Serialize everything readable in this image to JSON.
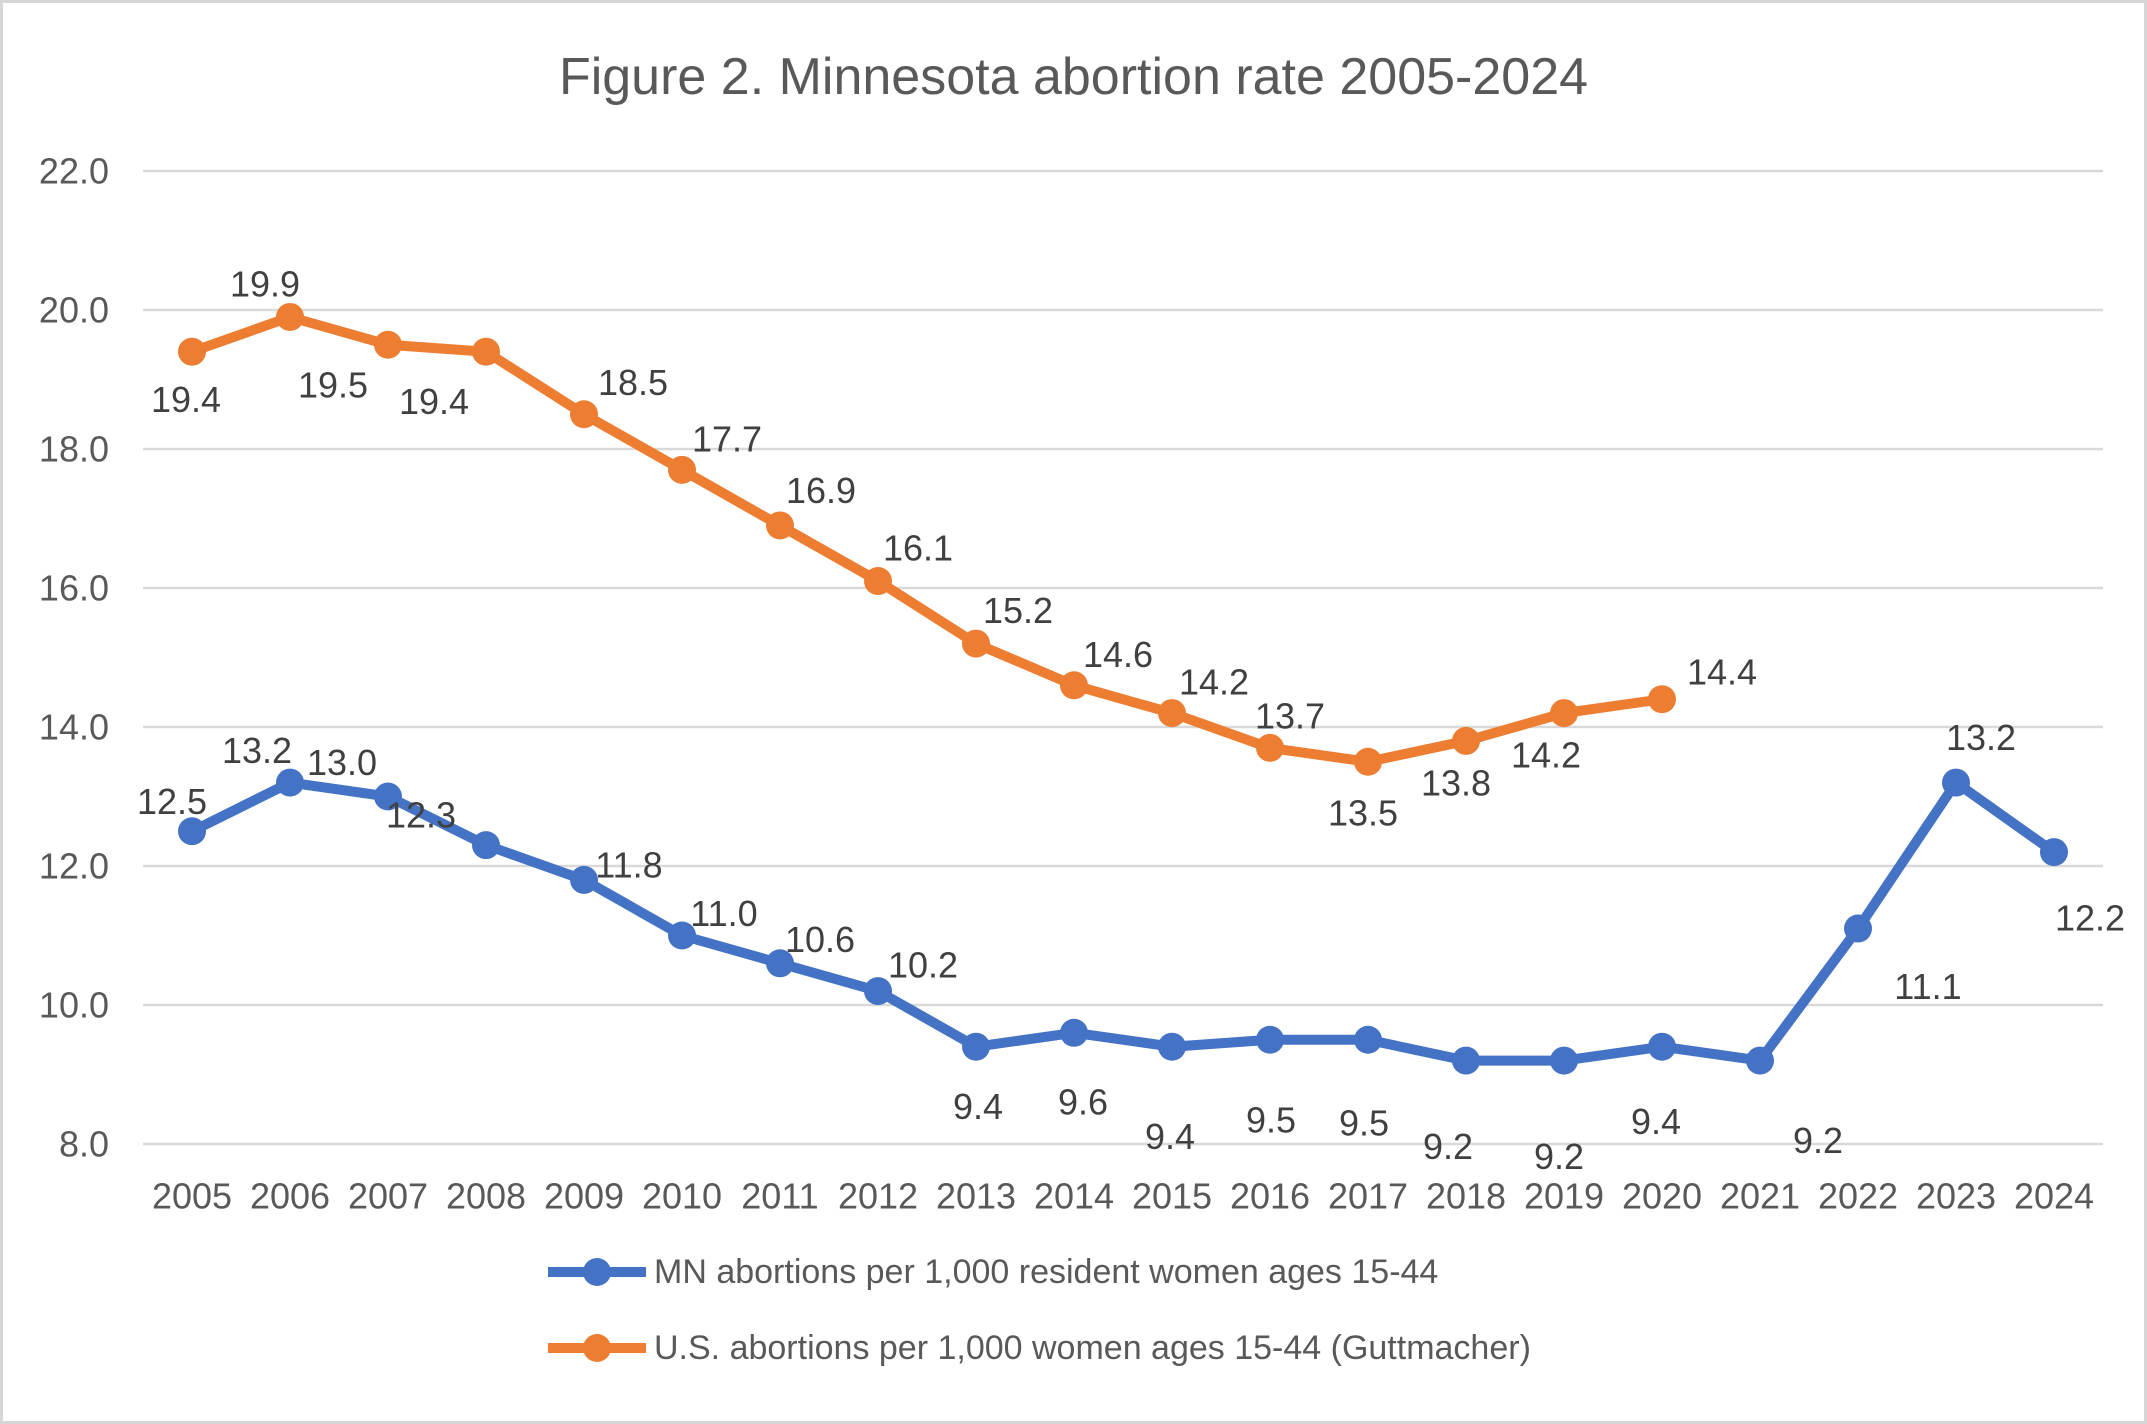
{
  "chart_data": {
    "type": "line",
    "title": "Figure 2. Minnesota abortion rate 2005-2024",
    "categories": [
      "2005",
      "2006",
      "2007",
      "2008",
      "2009",
      "2010",
      "2011",
      "2012",
      "2013",
      "2014",
      "2015",
      "2016",
      "2017",
      "2018",
      "2019",
      "2020",
      "2021",
      "2022",
      "2023",
      "2024"
    ],
    "y_axis": {
      "min": 8,
      "max": 22,
      "step": 2,
      "tick_labels": [
        "8.0",
        "10.0",
        "12.0",
        "14.0",
        "16.0",
        "18.0",
        "20.0",
        "22.0"
      ]
    },
    "grid": true,
    "legend_position": "bottom",
    "colors": {
      "mn_series": "#4472C4",
      "us_series": "#ED7D31",
      "gridline": "#D9D9D9",
      "axis_text": "#595959",
      "data_label_text": "#404040",
      "title_text": "#595959"
    },
    "series": [
      {
        "name": "MN abortions per 1,000 resident women ages 15-44",
        "color": "#4472C4",
        "values": [
          12.5,
          13.2,
          13.0,
          12.3,
          11.8,
          11.0,
          10.6,
          10.2,
          9.4,
          9.6,
          9.4,
          9.5,
          9.5,
          9.2,
          9.2,
          9.4,
          9.2,
          11.1,
          13.2,
          12.2
        ],
        "data_labels": [
          "12.5",
          "13.2",
          "13.0",
          "12.3",
          "11.8",
          "11.0",
          "10.6",
          "10.2",
          "9.4",
          "9.6",
          "9.4",
          "9.5",
          "9.5",
          "9.2",
          "9.2",
          "9.4",
          "9.2",
          "11.1",
          "13.2",
          "12.2"
        ],
        "label_offsets": [
          [
            -20,
            -30
          ],
          [
            -33,
            -32
          ],
          [
            -46,
            -34
          ],
          [
            -65,
            -30
          ],
          [
            45,
            -15
          ],
          [
            42,
            -22
          ],
          [
            40,
            -24
          ],
          [
            45,
            -26
          ],
          [
            2,
            60
          ],
          [
            9,
            69
          ],
          [
            -2,
            90
          ],
          [
            1,
            80
          ],
          [
            -4,
            83
          ],
          [
            -18,
            86
          ],
          [
            -5,
            96
          ],
          [
            -6,
            75
          ],
          [
            58,
            80
          ],
          [
            70,
            58
          ],
          [
            25,
            -45
          ],
          [
            36,
            66
          ]
        ]
      },
      {
        "name": "U.S. abortions per 1,000 women ages 15-44 (Guttmacher)",
        "color": "#ED7D31",
        "values": [
          19.4,
          19.9,
          19.5,
          19.4,
          18.5,
          17.7,
          16.9,
          16.1,
          15.2,
          14.6,
          14.2,
          13.7,
          13.5,
          13.8,
          14.2,
          14.4
        ],
        "data_labels": [
          "19.4",
          "19.9",
          "19.5",
          "19.4",
          "18.5",
          "17.7",
          "16.9",
          "16.1",
          "15.2",
          "14.6",
          "14.2",
          "13.7",
          "13.5",
          "13.8",
          "14.2",
          "14.4"
        ],
        "label_offsets": [
          [
            -6,
            48
          ],
          [
            -25,
            -33
          ],
          [
            -55,
            40
          ],
          [
            -52,
            50
          ],
          [
            49,
            -32
          ],
          [
            45,
            -31
          ],
          [
            41,
            -35
          ],
          [
            40,
            -33
          ],
          [
            42,
            -33
          ],
          [
            44,
            -31
          ],
          [
            42,
            -31
          ],
          [
            20,
            -32
          ],
          [
            -5,
            51
          ],
          [
            -10,
            42
          ],
          [
            -18,
            42
          ],
          [
            60,
            -27
          ]
        ]
      }
    ]
  }
}
